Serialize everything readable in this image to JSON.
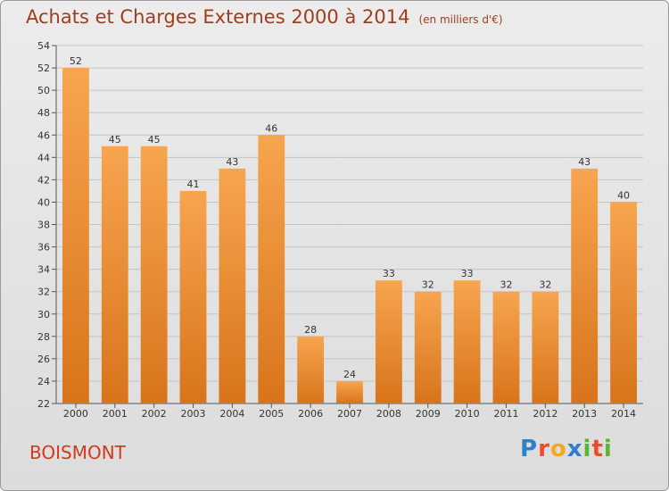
{
  "title": {
    "main": "Achats et Charges Externes 2000 à 2014",
    "unit": "(en milliers d'€)"
  },
  "commune": "BOISMONT",
  "logo": {
    "text": "Proxiti",
    "letters": [
      "P",
      "r",
      "o",
      "x",
      "i",
      "t",
      "i"
    ],
    "colors": [
      "#2f80c8",
      "#e94d2c",
      "#f5a623",
      "#2f80c8",
      "#5cb531",
      "#e94d2c",
      "#5cb531"
    ]
  },
  "colors": {
    "bar_top": "#f7a54f",
    "bar_bottom": "#d8741b",
    "title": "#a23c1e",
    "commune": "#d23a1e"
  },
  "chart_data": {
    "type": "bar",
    "title": "Achats et Charges Externes 2000 à 2014",
    "subtitle": "(en milliers d'€)",
    "categories": [
      "2000",
      "2001",
      "2002",
      "2003",
      "2004",
      "2005",
      "2006",
      "2007",
      "2008",
      "2009",
      "2010",
      "2011",
      "2012",
      "2013",
      "2014"
    ],
    "values": [
      52,
      45,
      45,
      41,
      43,
      46,
      28,
      24,
      33,
      32,
      33,
      32,
      32,
      43,
      40
    ],
    "ylim": [
      22,
      54
    ],
    "yticks": [
      22,
      24,
      26,
      28,
      30,
      32,
      34,
      36,
      38,
      40,
      42,
      44,
      46,
      48,
      50,
      52,
      54
    ],
    "grid": true,
    "xlabel": "",
    "ylabel": ""
  }
}
